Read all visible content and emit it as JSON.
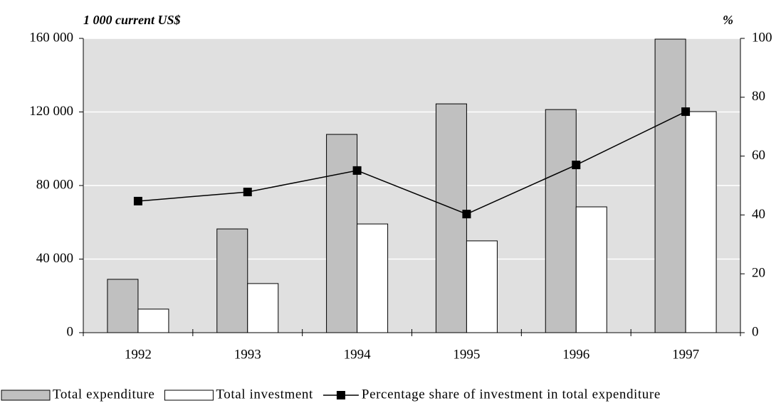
{
  "chart_data": {
    "type": "bar",
    "y_label": "1 000 current US$",
    "y2_label": "%",
    "categories": [
      "1992",
      "1993",
      "1994",
      "1995",
      "1996",
      "1997"
    ],
    "series": [
      {
        "name": "Total expenditure",
        "type": "bar",
        "color": "#c0c0c0",
        "values": [
          29000,
          56400,
          107800,
          124400,
          121300,
          159600
        ]
      },
      {
        "name": "Total investment",
        "type": "bar",
        "color": "#ffffff",
        "values": [
          12800,
          26700,
          59100,
          49900,
          68400,
          120200
        ]
      },
      {
        "name": "Percentage share of investment in total expenditure",
        "type": "line",
        "axis": "y2",
        "color": "#000000",
        "values": [
          44.7,
          47.8,
          55.1,
          40.3,
          57.0,
          75.1
        ]
      }
    ],
    "ylim": [
      0,
      160000
    ],
    "yticks": [
      0,
      {
        "value": 40000,
        "label": "40 000"
      },
      {
        "value": 80000,
        "label": "80 000"
      },
      {
        "value": 120000,
        "label": "120 000"
      },
      {
        "value": 160000,
        "label": "160 000"
      }
    ],
    "y2lim": [
      0,
      100
    ],
    "y2ticks": [
      0,
      20,
      40,
      60,
      80,
      100
    ],
    "grid": true,
    "background": "#e0e0e0",
    "legend": "bottom"
  }
}
